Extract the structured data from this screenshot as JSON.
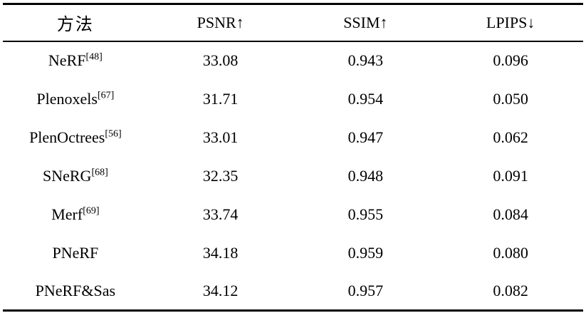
{
  "table": {
    "columns": [
      "方法",
      "PSNR↑",
      "SSIM↑",
      "LPIPS↓"
    ],
    "rows": [
      {
        "method": "NeRF",
        "cite": "[48]",
        "psnr": "33.08",
        "ssim": "0.943",
        "lpips": "0.096"
      },
      {
        "method": "Plenoxels",
        "cite": "[67]",
        "psnr": "31.71",
        "ssim": "0.954",
        "lpips": "0.050"
      },
      {
        "method": "PlenOctrees",
        "cite": "[56]",
        "psnr": "33.01",
        "ssim": "0.947",
        "lpips": "0.062"
      },
      {
        "method": "SNeRG",
        "cite": "[68]",
        "psnr": "32.35",
        "ssim": "0.948",
        "lpips": "0.091"
      },
      {
        "method": "Merf",
        "cite": "[69]",
        "psnr": "33.74",
        "ssim": "0.955",
        "lpips": "0.084"
      },
      {
        "method": "PNeRF",
        "cite": "",
        "psnr": "34.18",
        "ssim": "0.959",
        "lpips": "0.080"
      },
      {
        "method": "PNeRF&Sas",
        "cite": "",
        "psnr": "34.12",
        "ssim": "0.957",
        "lpips": "0.082"
      }
    ],
    "colors": {
      "text": "#000000",
      "rule": "#000000",
      "background": "#ffffff"
    }
  }
}
